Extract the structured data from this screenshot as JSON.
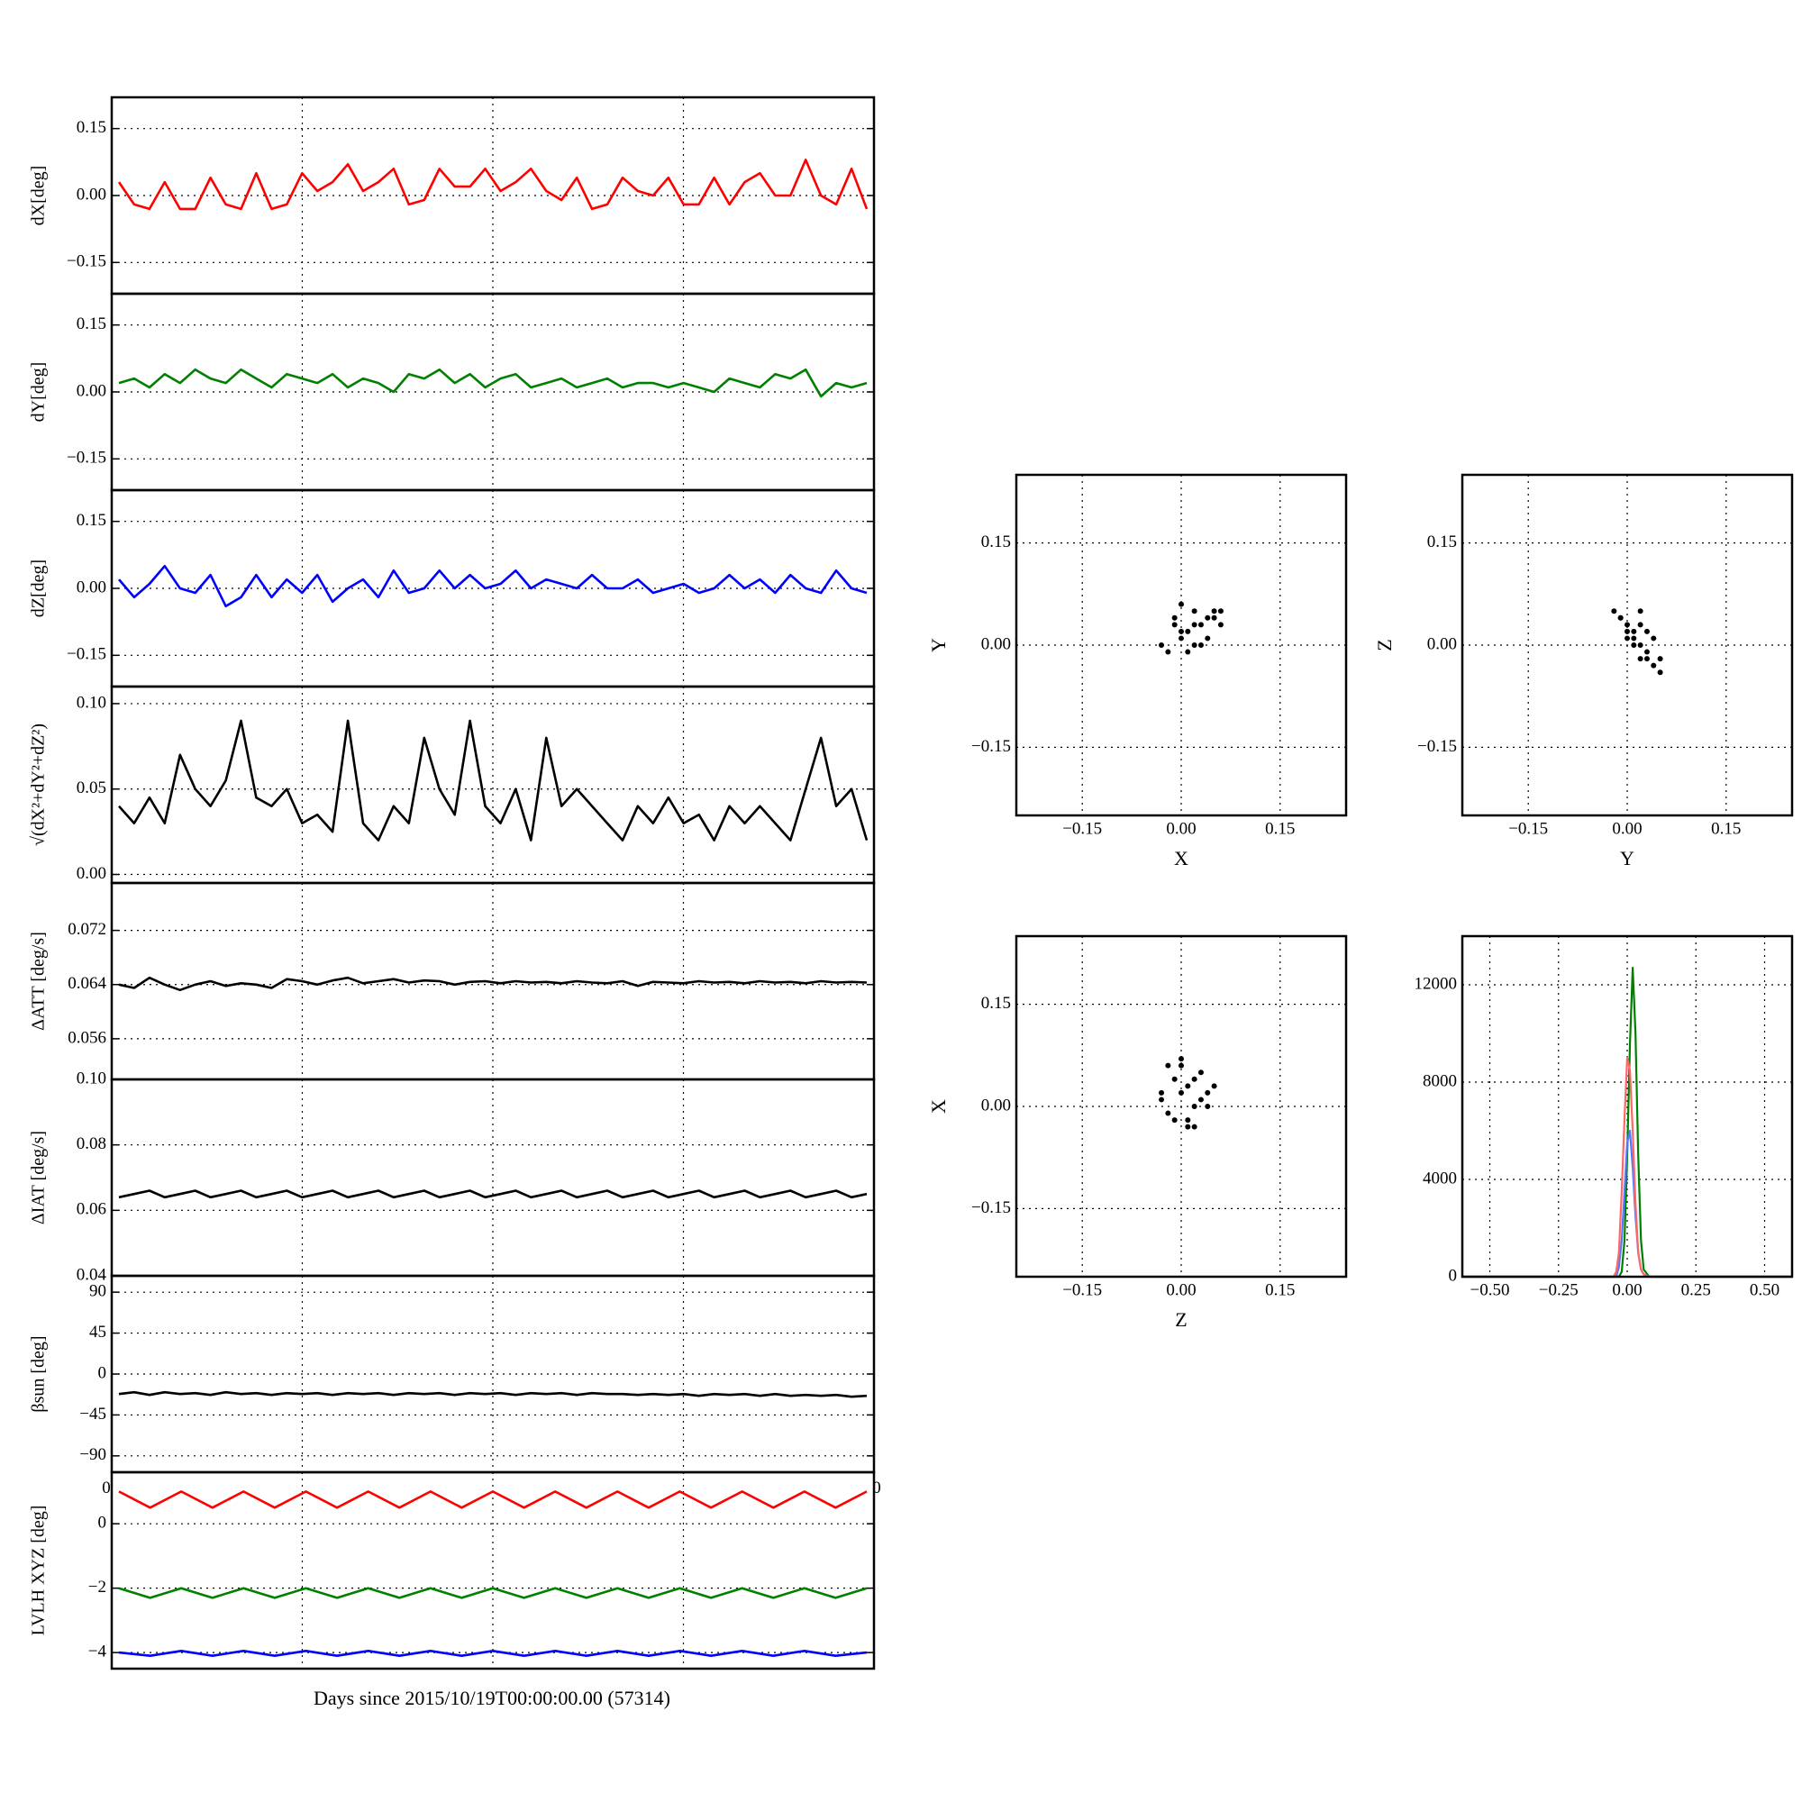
{
  "figure": {
    "xlabel": "Days since 2015/10/19T00:00:00.00 (57314)",
    "corner_labels": {
      "left": "0",
      "right": "0"
    }
  },
  "colors": {
    "x": "#ff0000",
    "y": "#008000",
    "z": "#0000ff",
    "k": "#000000",
    "hist_z": "#5577ff",
    "hist_x": "#ff6666"
  },
  "chart_data": [
    {
      "id": "dx",
      "type": "line",
      "ylabel": "dX[deg]",
      "ylim": [
        -0.22,
        0.22
      ],
      "yticks": [
        0.15,
        0.0,
        -0.15
      ],
      "yticklabels": [
        "0.15",
        "0.00",
        "−0.15"
      ],
      "grid": true,
      "series": [
        {
          "color": "x",
          "values": [
            0.03,
            -0.02,
            -0.03,
            0.03,
            -0.03,
            -0.03,
            0.04,
            -0.02,
            -0.03,
            0.05,
            -0.03,
            -0.02,
            0.05,
            0.01,
            0.03,
            0.07,
            0.01,
            0.03,
            0.06,
            -0.02,
            -0.01,
            0.06,
            0.02,
            0.02,
            0.06,
            0.01,
            0.03,
            0.06,
            0.01,
            -0.01,
            0.04,
            -0.03,
            -0.02,
            0.04,
            0.01,
            0.0,
            0.04,
            -0.02,
            -0.02,
            0.04,
            -0.02,
            0.03,
            0.05,
            0.0,
            0.0,
            0.08,
            0.0,
            -0.02,
            0.06,
            -0.03
          ]
        }
      ]
    },
    {
      "id": "dy",
      "type": "line",
      "ylabel": "dY[deg]",
      "ylim": [
        -0.22,
        0.22
      ],
      "yticks": [
        0.15,
        0.0,
        -0.15
      ],
      "yticklabels": [
        "0.15",
        "0.00",
        "−0.15"
      ],
      "grid": true,
      "series": [
        {
          "color": "y",
          "values": [
            0.02,
            0.03,
            0.01,
            0.04,
            0.02,
            0.05,
            0.03,
            0.02,
            0.05,
            0.03,
            0.01,
            0.04,
            0.03,
            0.02,
            0.04,
            0.01,
            0.03,
            0.02,
            0.0,
            0.04,
            0.03,
            0.05,
            0.02,
            0.04,
            0.01,
            0.03,
            0.04,
            0.01,
            0.02,
            0.03,
            0.01,
            0.02,
            0.03,
            0.01,
            0.02,
            0.02,
            0.01,
            0.02,
            0.01,
            0.0,
            0.03,
            0.02,
            0.01,
            0.04,
            0.03,
            0.05,
            -0.01,
            0.02,
            0.01,
            0.02
          ]
        }
      ]
    },
    {
      "id": "dz",
      "type": "line",
      "ylabel": "dZ[deg]",
      "ylim": [
        -0.22,
        0.22
      ],
      "yticks": [
        0.15,
        0.0,
        -0.15
      ],
      "yticklabels": [
        "0.15",
        "0.00",
        "−0.15"
      ],
      "grid": true,
      "series": [
        {
          "color": "z",
          "values": [
            0.02,
            -0.02,
            0.01,
            0.05,
            0.0,
            -0.01,
            0.03,
            -0.04,
            -0.02,
            0.03,
            -0.02,
            0.02,
            -0.01,
            0.03,
            -0.03,
            0.0,
            0.02,
            -0.02,
            0.04,
            -0.01,
            0.0,
            0.04,
            0.0,
            0.03,
            0.0,
            0.01,
            0.04,
            0.0,
            0.02,
            0.01,
            0.0,
            0.03,
            0.0,
            0.0,
            0.02,
            -0.01,
            0.0,
            0.01,
            -0.01,
            0.0,
            0.03,
            0.0,
            0.02,
            -0.01,
            0.03,
            0.0,
            -0.01,
            0.04,
            0.0,
            -0.01
          ]
        }
      ]
    },
    {
      "id": "dr",
      "type": "line",
      "ylabel": "√(dX²+dY²+dZ²)",
      "ylim": [
        -0.005,
        0.11
      ],
      "yticks": [
        0.1,
        0.05,
        0.0
      ],
      "yticklabels": [
        "0.10",
        "0.05",
        "0.00"
      ],
      "grid": true,
      "series": [
        {
          "color": "k",
          "values": [
            0.04,
            0.03,
            0.045,
            0.03,
            0.07,
            0.05,
            0.04,
            0.055,
            0.09,
            0.045,
            0.04,
            0.05,
            0.03,
            0.035,
            0.025,
            0.09,
            0.03,
            0.02,
            0.04,
            0.03,
            0.08,
            0.05,
            0.035,
            0.09,
            0.04,
            0.03,
            0.05,
            0.02,
            0.08,
            0.04,
            0.05,
            0.04,
            0.03,
            0.02,
            0.04,
            0.03,
            0.045,
            0.03,
            0.035,
            0.02,
            0.04,
            0.03,
            0.04,
            0.03,
            0.02,
            0.05,
            0.08,
            0.04,
            0.05,
            0.02
          ]
        }
      ]
    },
    {
      "id": "datt",
      "type": "line",
      "ylabel": "ΔATT [deg/s]",
      "ylim": [
        0.05,
        0.079
      ],
      "yticks": [
        0.072,
        0.064,
        0.056
      ],
      "yticklabels": [
        "0.072",
        "0.064",
        "0.056"
      ],
      "grid": true,
      "series": [
        {
          "color": "k",
          "values": [
            0.064,
            0.0635,
            0.065,
            0.064,
            0.0632,
            0.064,
            0.0645,
            0.0638,
            0.0642,
            0.064,
            0.0635,
            0.0648,
            0.0645,
            0.064,
            0.0646,
            0.065,
            0.0642,
            0.0645,
            0.0648,
            0.0643,
            0.0646,
            0.0645,
            0.064,
            0.0644,
            0.0645,
            0.0642,
            0.0645,
            0.0643,
            0.0644,
            0.0642,
            0.0645,
            0.0643,
            0.0642,
            0.0645,
            0.0638,
            0.0644,
            0.0643,
            0.0642,
            0.0645,
            0.0643,
            0.0644,
            0.0642,
            0.0645,
            0.0643,
            0.0644,
            0.0642,
            0.0645,
            0.0643,
            0.0644,
            0.0643
          ]
        }
      ]
    },
    {
      "id": "diat",
      "type": "line",
      "ylabel": "ΔIAT [deg/s]",
      "ylim": [
        0.04,
        0.1
      ],
      "yticks": [
        0.1,
        0.08,
        0.06,
        0.04
      ],
      "yticklabels": [
        "0.10",
        "0.08",
        "0.06",
        "0.04"
      ],
      "grid": true,
      "series": [
        {
          "color": "k",
          "values": [
            0.064,
            0.065,
            0.066,
            0.064,
            0.065,
            0.066,
            0.064,
            0.065,
            0.066,
            0.064,
            0.065,
            0.066,
            0.064,
            0.065,
            0.066,
            0.064,
            0.065,
            0.066,
            0.064,
            0.065,
            0.066,
            0.064,
            0.065,
            0.066,
            0.064,
            0.065,
            0.066,
            0.064,
            0.065,
            0.066,
            0.064,
            0.065,
            0.066,
            0.064,
            0.065,
            0.066,
            0.064,
            0.065,
            0.066,
            0.064,
            0.065,
            0.066,
            0.064,
            0.065,
            0.066,
            0.064,
            0.065,
            0.066,
            0.064,
            0.065
          ]
        }
      ]
    },
    {
      "id": "beta",
      "type": "line",
      "ylabel": "βsun [deg]",
      "ylim": [
        -108,
        108
      ],
      "yticks": [
        90,
        45,
        0,
        -45,
        -90
      ],
      "yticklabels": [
        "90",
        "45",
        "0",
        "−45",
        "−90"
      ],
      "grid": true,
      "series": [
        {
          "color": "k",
          "values": [
            -22,
            -20,
            -23,
            -20,
            -22,
            -21,
            -23,
            -20,
            -22,
            -21,
            -23,
            -21,
            -22,
            -21,
            -23,
            -21,
            -22,
            -21,
            -23,
            -21,
            -22,
            -21,
            -23,
            -21,
            -22,
            -21,
            -23,
            -21,
            -22,
            -21,
            -23,
            -21,
            -22,
            -22,
            -23,
            -22,
            -23,
            -22,
            -24,
            -22,
            -23,
            -22,
            -24,
            -22,
            -24,
            -23,
            -24,
            -23,
            -25,
            -24
          ]
        }
      ]
    },
    {
      "id": "lvlh",
      "type": "line",
      "ylabel": "LVLH XYZ [deg]",
      "ylim": [
        -4.5,
        1.6
      ],
      "yticks": [
        0,
        -2,
        -4
      ],
      "yticklabels": [
        "0",
        "−2",
        "−4"
      ],
      "grid": true,
      "series": [
        {
          "color": "x",
          "values": [
            1.0,
            0.5,
            1.0,
            0.5,
            1.0,
            0.5,
            1.0,
            0.5,
            1.0,
            0.5,
            1.0,
            0.5,
            1.0,
            0.5,
            1.0,
            0.5,
            1.0,
            0.5,
            1.0,
            0.5,
            1.0,
            0.5,
            1.0,
            0.5,
            1.0
          ]
        },
        {
          "color": "y",
          "values": [
            -2.0,
            -2.3,
            -2.0,
            -2.3,
            -2.0,
            -2.3,
            -2.0,
            -2.3,
            -2.0,
            -2.3,
            -2.0,
            -2.3,
            -2.0,
            -2.3,
            -2.0,
            -2.3,
            -2.0,
            -2.3,
            -2.0,
            -2.3,
            -2.0,
            -2.3,
            -2.0,
            -2.3,
            -2.0
          ]
        },
        {
          "color": "z",
          "values": [
            -4.0,
            -4.1,
            -3.95,
            -4.1,
            -3.95,
            -4.1,
            -3.95,
            -4.1,
            -3.95,
            -4.1,
            -3.95,
            -4.1,
            -3.95,
            -4.1,
            -3.95,
            -4.1,
            -3.95,
            -4.1,
            -3.95,
            -4.1,
            -3.95,
            -4.1,
            -3.95,
            -4.1,
            -4.0
          ]
        }
      ]
    },
    {
      "id": "scatter_xy",
      "type": "scatter",
      "xlabel": "X",
      "ylabel": "Y",
      "xlim": [
        -0.25,
        0.25
      ],
      "ylim": [
        -0.25,
        0.25
      ],
      "ticks": [
        -0.15,
        0.0,
        0.15
      ],
      "ticklabels": [
        "−0.15",
        "0.00",
        "0.15"
      ],
      "grid": true,
      "color": "k",
      "x": [
        0.0,
        0.02,
        0.04,
        0.06,
        -0.02,
        0.01,
        0.03,
        0.05,
        -0.01,
        0.02,
        0.0,
        0.04,
        0.03,
        -0.03,
        0.01,
        0.05,
        0.02,
        -0.01,
        0.06,
        0.0
      ],
      "y": [
        0.01,
        0.03,
        0.04,
        0.05,
        -0.01,
        0.02,
        0.0,
        0.04,
        0.03,
        0.05,
        0.02,
        0.01,
        0.03,
        0.0,
        -0.01,
        0.05,
        0.0,
        0.04,
        0.03,
        0.06
      ]
    },
    {
      "id": "scatter_yz",
      "type": "scatter",
      "xlabel": "Y",
      "ylabel": "Z",
      "xlim": [
        -0.25,
        0.25
      ],
      "ylim": [
        -0.25,
        0.25
      ],
      "ticks": [
        -0.15,
        0.0,
        0.15
      ],
      "ticklabels": [
        "−0.15",
        "0.00",
        "0.15"
      ],
      "grid": true,
      "color": "k",
      "x": [
        -0.02,
        -0.01,
        0.0,
        0.01,
        0.02,
        0.03,
        0.04,
        0.05,
        0.0,
        0.01,
        0.02,
        0.03,
        -0.01,
        0.01,
        0.02,
        0.04,
        0.03,
        0.0,
        0.05,
        0.02
      ],
      "y": [
        0.05,
        0.04,
        0.02,
        0.01,
        0.0,
        -0.01,
        -0.03,
        -0.04,
        0.03,
        0.0,
        -0.02,
        -0.02,
        0.04,
        0.02,
        0.03,
        0.01,
        0.02,
        0.01,
        -0.02,
        0.05
      ]
    },
    {
      "id": "scatter_zx",
      "type": "scatter",
      "xlabel": "Z",
      "ylabel": "X",
      "xlim": [
        -0.25,
        0.25
      ],
      "ylim": [
        -0.25,
        0.25
      ],
      "ticks": [
        -0.15,
        0.0,
        0.15
      ],
      "ticklabels": [
        "−0.15",
        "0.00",
        "0.15"
      ],
      "grid": true,
      "color": "k",
      "x": [
        -0.03,
        -0.02,
        -0.01,
        0.0,
        0.01,
        0.02,
        0.03,
        0.04,
        0.05,
        -0.02,
        0.0,
        0.02,
        0.01,
        -0.01,
        0.03,
        0.0,
        0.02,
        -0.03,
        0.04,
        0.01
      ],
      "y": [
        0.02,
        0.06,
        -0.02,
        0.07,
        0.03,
        -0.03,
        0.05,
        0.0,
        0.03,
        -0.01,
        0.02,
        0.04,
        -0.02,
        0.04,
        0.01,
        0.06,
        0.0,
        0.01,
        0.02,
        -0.03
      ]
    },
    {
      "id": "histogram",
      "type": "line",
      "xlabel": "",
      "ylabel": "",
      "xlim": [
        -0.6,
        0.6
      ],
      "ylim": [
        0,
        14000
      ],
      "xticks": [
        -0.5,
        -0.25,
        0.0,
        0.25,
        0.5
      ],
      "xticklabels": [
        "−0.50",
        "−0.25",
        "0.00",
        "0.25",
        "0.50"
      ],
      "yticks": [
        0,
        4000,
        8000,
        12000
      ],
      "yticklabels": [
        "0",
        "4000",
        "8000",
        "12000"
      ],
      "grid": true,
      "x": [
        -0.6,
        -0.05,
        -0.04,
        -0.03,
        -0.02,
        -0.01,
        0.0,
        0.01,
        0.02,
        0.03,
        0.04,
        0.05,
        0.06,
        0.08,
        0.6
      ],
      "series": [
        {
          "color": "y",
          "values": [
            0,
            0,
            0,
            0,
            200,
            1500,
            5000,
            9500,
            12700,
            10000,
            5000,
            1500,
            300,
            0,
            0
          ]
        },
        {
          "color": "hist_z",
          "values": [
            0,
            0,
            0,
            400,
            1500,
            3500,
            5500,
            6000,
            4500,
            2500,
            1000,
            300,
            100,
            0,
            0
          ]
        },
        {
          "color": "hist_x",
          "values": [
            0,
            0,
            200,
            1000,
            3500,
            6500,
            9000,
            8500,
            6000,
            3000,
            1000,
            300,
            100,
            0,
            0
          ]
        }
      ]
    }
  ]
}
